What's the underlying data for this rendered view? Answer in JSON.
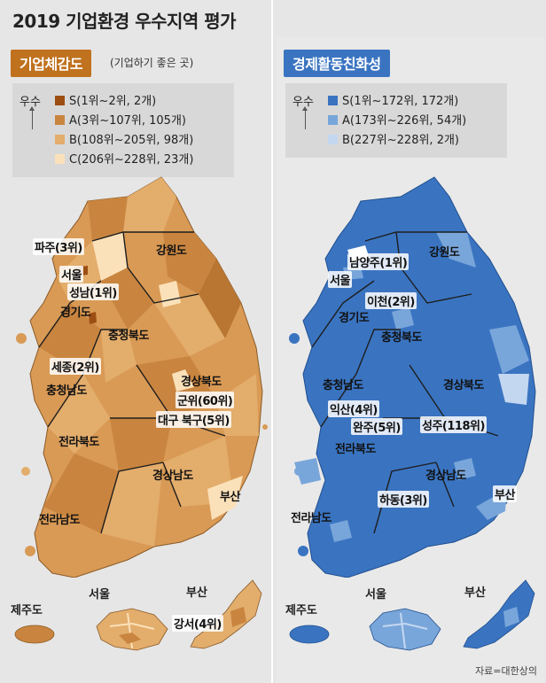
{
  "title": "2019 기업환경 우수지역 평가",
  "colors": {
    "biz_s": "#9c4e12",
    "biz_a": "#c9853f",
    "biz_b": "#e3ad6c",
    "biz_c": "#fbe1b9",
    "eco_s": "#3a74c1",
    "eco_a": "#79a6da",
    "eco_b": "#c4d7f0",
    "boundary": "#1e1e1e"
  },
  "left_panel": {
    "heading": "기업체감도",
    "note": "(기업하기 좋은 곳)",
    "legend_header": "우수",
    "legend": [
      {
        "text": "S(1위~2위, 2개)",
        "color": "#9c4e12"
      },
      {
        "text": "A(3위~107위, 105개)",
        "color": "#c9853f"
      },
      {
        "text": "B(108위~205위, 98개)",
        "color": "#e3ad6c"
      },
      {
        "text": "C(206위~228위, 23개)",
        "color": "#fbe1b9"
      }
    ],
    "labels": {
      "paju": "파주(3위)",
      "seoul": "서울",
      "seongnam": "성남(1위)",
      "gyeonggi": "경기도",
      "gangwon": "강원도",
      "chungbuk": "충청북도",
      "sejong": "세종(2위)",
      "chungnam": "충청남도",
      "gyeongbuk": "경상북도",
      "gunwi": "군위(60위)",
      "daegu": "대구 북구(5위)",
      "jeonbuk": "전라북도",
      "gyeongnam": "경상남도",
      "busan": "부산",
      "jeonnam": "전라남도"
    },
    "insets": {
      "jeju": "제주도",
      "seoul": "서울",
      "busan": "부산",
      "gangseo": "강서(4위)"
    }
  },
  "right_panel": {
    "heading": "경제활동친화성",
    "legend_header": "우수",
    "legend": [
      {
        "text": "S(1위~172위, 172개)",
        "color": "#3a74c1"
      },
      {
        "text": "A(173위~226위, 54개)",
        "color": "#79a6da"
      },
      {
        "text": "B(227위~228위, 2개)",
        "color": "#c4d7f0"
      }
    ],
    "labels": {
      "namyangju": "남양주(1위)",
      "seoul": "서울",
      "icheon": "이천(2위)",
      "gyeonggi": "경기도",
      "gangwon": "강원도",
      "chungbuk": "충청북도",
      "chungnam": "충청남도",
      "gyeongbuk": "경상북도",
      "iksan": "익산(4위)",
      "wanju": "완주(5위)",
      "seongju": "성주(118위)",
      "jeonbuk": "전라북도",
      "gyeongnam": "경상남도",
      "busan": "부산",
      "hadong": "하동(3위)",
      "jeonnam": "전라남도"
    },
    "insets": {
      "jeju": "제주도",
      "seoul": "서울",
      "busan": "부산"
    }
  },
  "source": "자료=대한상의"
}
